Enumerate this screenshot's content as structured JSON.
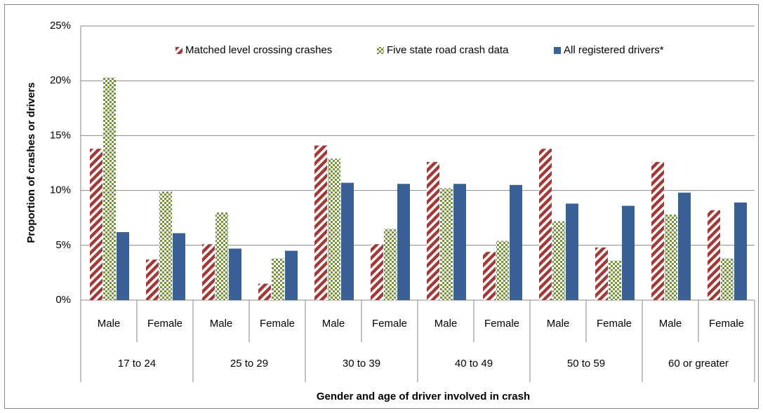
{
  "chart_data": {
    "type": "bar",
    "categories": [
      "Male",
      "Female",
      "Male",
      "Female",
      "Male",
      "Female",
      "Male",
      "Female",
      "Male",
      "Female",
      "Male",
      "Female"
    ],
    "category_groups": [
      "17 to 24",
      "25 to 29",
      "30 to 39",
      "40 to 49",
      "50 to 59",
      "60 or greater"
    ],
    "series": [
      {
        "name": "Matched level crossing crashes",
        "color": "#a33a38",
        "pattern": "diagonal",
        "values": [
          13.8,
          3.7,
          5.1,
          1.5,
          14.1,
          5.1,
          12.6,
          4.4,
          13.8,
          4.8,
          12.6,
          8.2
        ]
      },
      {
        "name": "Five state road crash data",
        "color": "#77933c",
        "pattern": "checker",
        "values": [
          20.3,
          9.9,
          8.0,
          3.8,
          12.9,
          6.5,
          10.2,
          5.4,
          7.2,
          3.6,
          7.8,
          3.8
        ]
      },
      {
        "name": "All registered drivers*",
        "color": "#3a6095",
        "pattern": "solid",
        "values": [
          6.2,
          6.1,
          4.7,
          4.5,
          10.7,
          10.6,
          10.6,
          10.5,
          8.8,
          8.6,
          9.8,
          8.9
        ]
      }
    ],
    "ylim": [
      0,
      25
    ],
    "yticks": [
      {
        "value": 0,
        "label": "0%"
      },
      {
        "value": 5,
        "label": "5%"
      },
      {
        "value": 10,
        "label": "10%"
      },
      {
        "value": 15,
        "label": "15%"
      },
      {
        "value": 20,
        "label": "20%"
      },
      {
        "value": 25,
        "label": "25%"
      }
    ],
    "grid": true,
    "y_label": "Proportion of crashes or drivers",
    "x_label": "Gender and age of driver involved in crash",
    "legend": "top"
  }
}
